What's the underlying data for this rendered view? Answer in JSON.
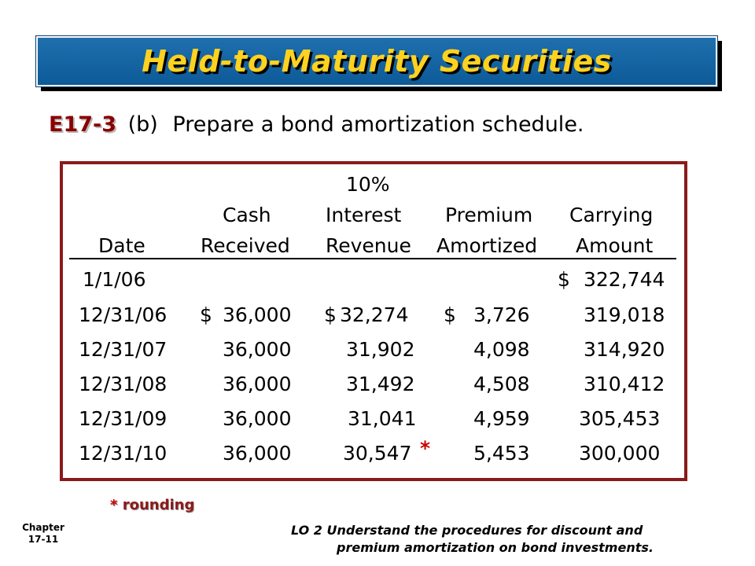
{
  "header": {
    "title": "Held-to-Maturity Securities"
  },
  "subtitle": {
    "exercise_code": "E17-3",
    "part": "(b)",
    "instruction": "Prepare a bond amortization schedule."
  },
  "table": {
    "headers": {
      "rate": "10%",
      "date": "Date",
      "cash_top": "Cash",
      "cash_bottom": "Received",
      "interest_top": "Interest",
      "interest_bottom": "Revenue",
      "premium_top": "Premium",
      "premium_bottom": "Amortized",
      "carrying_top": "Carrying",
      "carrying_bottom": "Amount"
    },
    "currency_symbol": "$",
    "rows": [
      {
        "date": "1/1/06",
        "cash": "",
        "interest": "",
        "premium": "",
        "carrying": "322,744"
      },
      {
        "date": "12/31/06",
        "cash": "36,000",
        "interest": "32,274",
        "premium": "3,726",
        "carrying": "319,018"
      },
      {
        "date": "12/31/07",
        "cash": "36,000",
        "interest": "31,902",
        "premium": "4,098",
        "carrying": "314,920"
      },
      {
        "date": "12/31/08",
        "cash": "36,000",
        "interest": "31,492",
        "premium": "4,508",
        "carrying": "310,412"
      },
      {
        "date": "12/31/09",
        "cash": "36,000",
        "interest": "31,041",
        "premium": "4,959",
        "carrying": "305,453"
      },
      {
        "date": "12/31/10",
        "cash": "36,000",
        "interest": "30,547",
        "premium": "5,453",
        "carrying": "300,000"
      }
    ],
    "rounding_marker": "*"
  },
  "footnote": {
    "marker": "*",
    "text": "rounding"
  },
  "footer": {
    "chapter_label": "Chapter",
    "chapter_number": "17-11",
    "lo_line1": "LO 2  Understand the procedures for discount and",
    "lo_line2": "premium amortization on bond investments."
  },
  "colors": {
    "title_bar": "#0d5a98",
    "title_text": "#ffd21f",
    "exercise_code": "#8b0000",
    "table_border": "#8b1a1a",
    "rounding_star": "#cc0000"
  }
}
